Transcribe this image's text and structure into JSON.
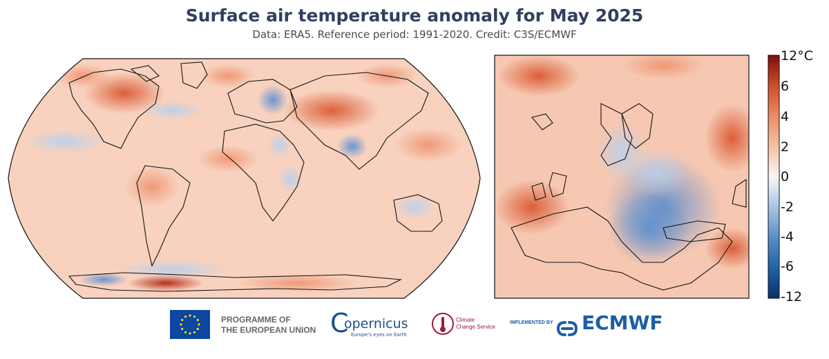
{
  "header": {
    "title": "Surface air temperature anomaly for May 2025",
    "subtitle": "Data: ERA5.  Reference period: 1991-2020.  Credit: C3S/ECMWF"
  },
  "colorbar": {
    "unit": "°C",
    "ticks": [
      "12",
      "6",
      "4",
      "2",
      "0",
      "-2",
      "-4",
      "-6",
      "-12"
    ],
    "colors": [
      "#0a2a66",
      "#1f5fa8",
      "#5a8fc8",
      "#a9c8e6",
      "#f6f6f6",
      "#f4c3a9",
      "#e88c66",
      "#cc4a2a",
      "#8a1010"
    ]
  },
  "maps": {
    "global": {
      "name": "global-robinson-map"
    },
    "europe": {
      "name": "europe-inset-map"
    }
  },
  "logos": {
    "eu_line1": "PROGRAMME OF",
    "eu_line2": "THE EUROPEAN UNION",
    "copernicus": "opernicus",
    "copernicus_letter": "C",
    "copernicus_tagline": "Europe's eyes on Earth",
    "climate_line1": "Climate",
    "climate_line2": "Change Service",
    "implemented_by": "IMPLEMENTED BY",
    "ecmwf": "ECMWF"
  },
  "colors": {
    "title": "#333f5f",
    "warm": "#e8764f",
    "cool": "#6f9fd1",
    "eu_blue": "#0e47a1",
    "eu_yellow": "#ffdd00",
    "copernicus_blue": "#1e4f8b",
    "climate_red": "#9b1b3a",
    "ecmwf_blue": "#1b5ea8"
  }
}
